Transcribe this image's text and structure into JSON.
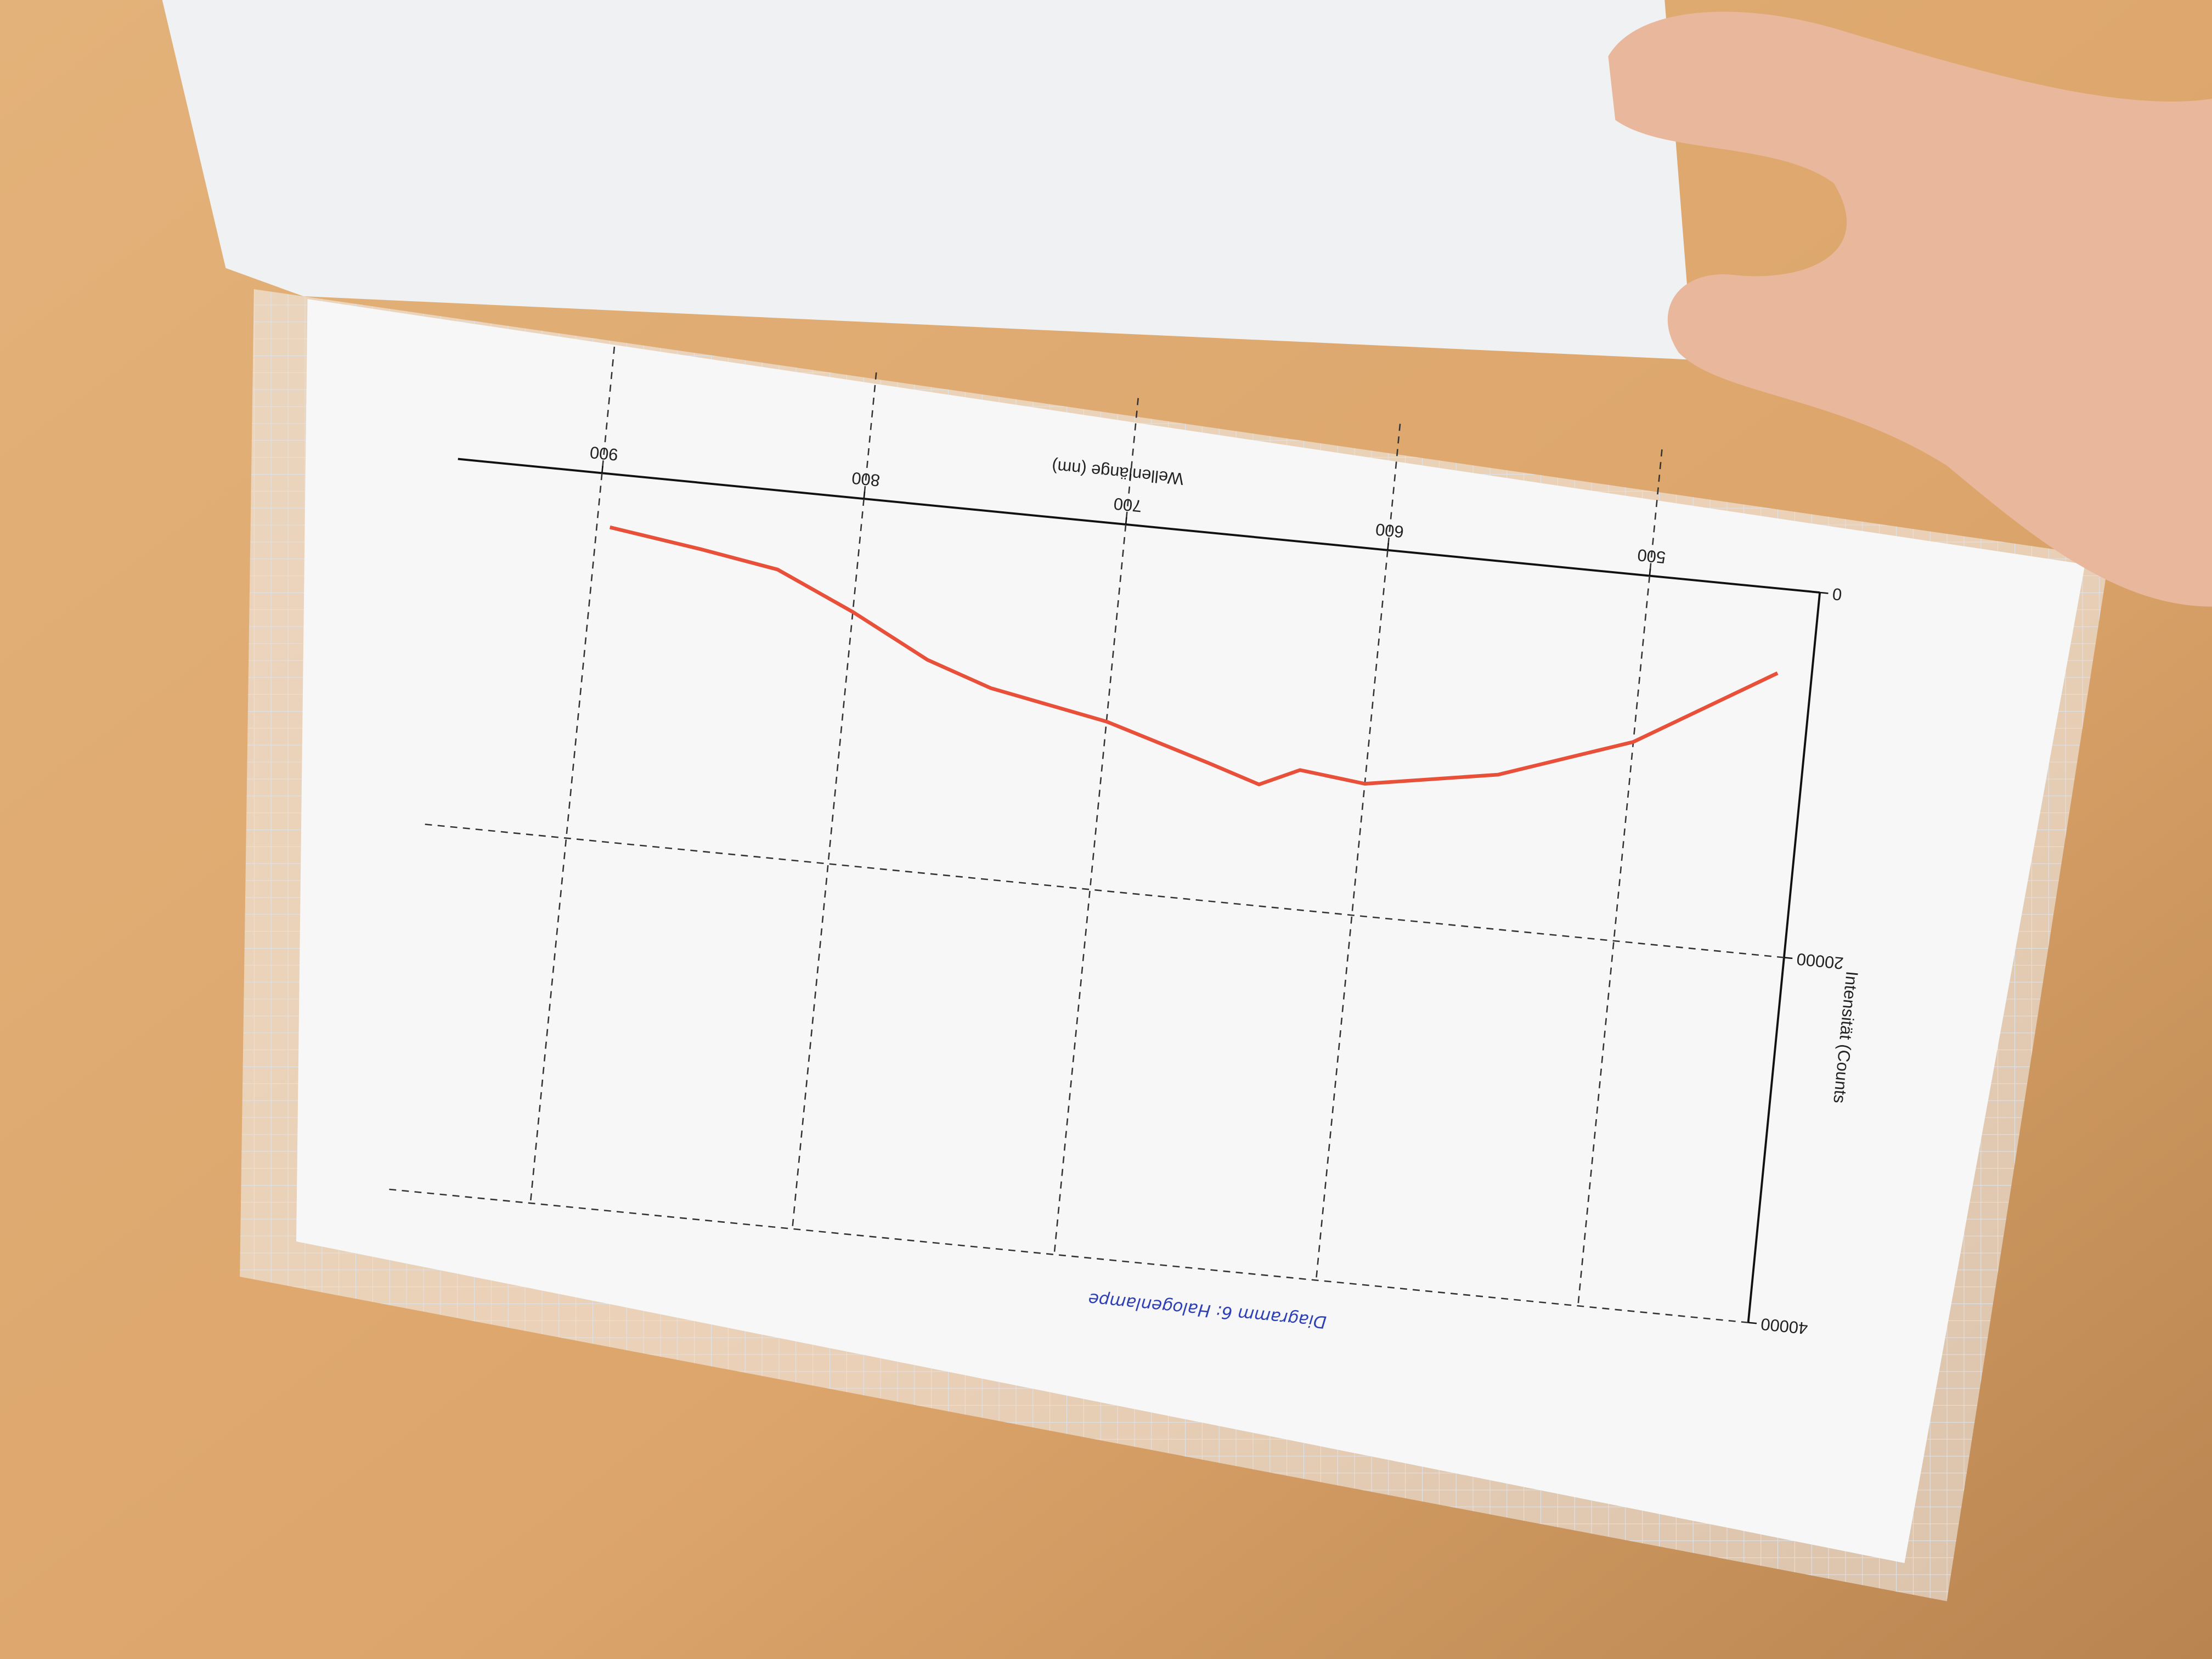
{
  "chart_data": {
    "type": "line",
    "title": "Diagramm 6: Halogenlampe",
    "x_label": "Wellenlänge (nm)",
    "y_label": "Intensität (Counts",
    "xlim": [
      435,
      955
    ],
    "xticks": [
      500,
      600,
      700,
      800,
      900
    ],
    "ylim": [
      0,
      40000
    ],
    "yticks": [
      0,
      20000,
      40000
    ],
    "grid": true,
    "series": [
      {
        "color": "#e8503a",
        "x": [
          448,
          500,
          550,
          600,
          625,
          640,
          660,
          700,
          745,
          770,
          800,
          830,
          860,
          895
        ],
        "values": [
          4600,
          9100,
          11600,
          12800,
          12400,
          13400,
          12500,
          10800,
          9600,
          8400,
          6200,
          4300,
          3600,
          2900
        ]
      }
    ]
  }
}
